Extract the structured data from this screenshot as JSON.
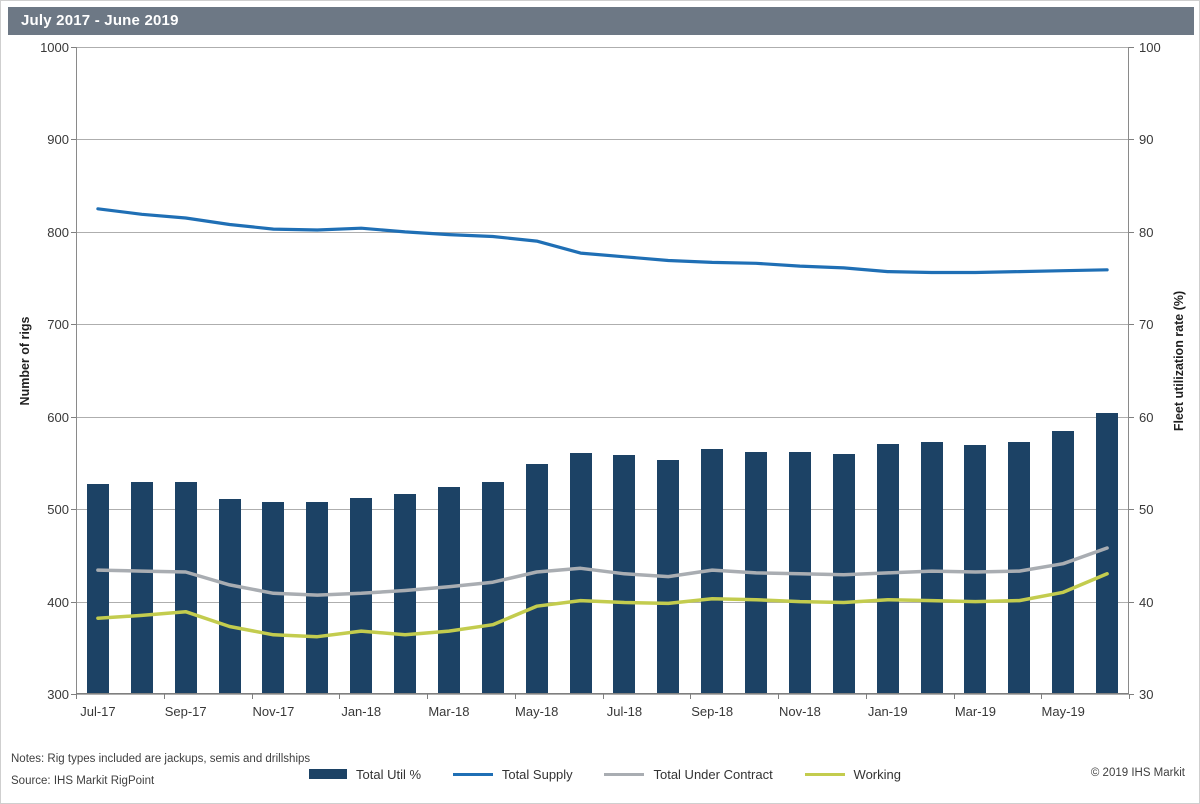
{
  "footer": {
    "notes": "Notes: Rig types included are jackups, semis and drillships",
    "source": "Source: IHS Markit RigPoint",
    "copyright": "© 2019 IHS Markit"
  },
  "colors": {
    "title_bar_bg": "#6D7885",
    "bar": "#1C4265",
    "supply_line": "#1F6FB5",
    "contract_line": "#A9ADB2",
    "working_line": "#C3CC4E",
    "gridline": "#AEAEAE"
  },
  "chart_data": {
    "type": "bar",
    "subtype": "bar-line-combo",
    "title": "July 2017 - June 2019",
    "grid": "horizontal",
    "legend_position": "bottom",
    "x_categories": [
      "Jul-17",
      "Aug-17",
      "Sep-17",
      "Oct-17",
      "Nov-17",
      "Dec-17",
      "Jan-18",
      "Feb-18",
      "Mar-18",
      "Apr-18",
      "May-18",
      "Jun-18",
      "Jul-18",
      "Aug-18",
      "Sep-18",
      "Oct-18",
      "Nov-18",
      "Dec-18",
      "Jan-19",
      "Feb-19",
      "Mar-19",
      "Apr-19",
      "May-19",
      "Jun-19"
    ],
    "x_tick_labels": [
      "Jul-17",
      "Sep-17",
      "Nov-17",
      "Jan-18",
      "Mar-18",
      "May-18",
      "Jul-18",
      "Sep-18",
      "Nov-18",
      "Jan-19",
      "Mar-19",
      "May-19"
    ],
    "left_axis": {
      "label": "Number of rigs",
      "min": 300,
      "max": 1000,
      "step": 100,
      "ticks": [
        1000,
        900,
        800,
        700,
        600,
        500,
        400,
        300
      ]
    },
    "right_axis": {
      "label": "Fleet utilization rate (%)",
      "min": 30,
      "max": 100,
      "step": 10,
      "ticks": [
        100,
        90,
        80,
        70,
        60,
        50,
        40,
        30
      ]
    },
    "series": [
      {
        "name": "Total Util %",
        "kind": "bar",
        "axis": "right",
        "color": "#1C4265",
        "values": [
          52.7,
          52.9,
          52.9,
          51.1,
          50.8,
          50.8,
          51.2,
          51.6,
          52.4,
          52.9,
          54.9,
          56.1,
          55.9,
          55.3,
          56.5,
          56.2,
          56.2,
          56.0,
          57.1,
          57.3,
          56.9,
          57.3,
          58.5,
          60.4
        ]
      },
      {
        "name": "Total Supply",
        "kind": "line",
        "axis": "left",
        "color": "#1F6FB5",
        "values": [
          825,
          819,
          815,
          808,
          803,
          802,
          804,
          800,
          797,
          795,
          790,
          777,
          773,
          769,
          767,
          766,
          763,
          761,
          757,
          756,
          756,
          757,
          758,
          759
        ]
      },
      {
        "name": "Total Under Contract",
        "kind": "line",
        "axis": "left",
        "color": "#A9ADB2",
        "values": [
          434,
          433,
          432,
          418,
          409,
          407,
          409,
          412,
          416,
          421,
          432,
          436,
          430,
          427,
          434,
          431,
          430,
          429,
          431,
          433,
          432,
          433,
          441,
          458
        ]
      },
      {
        "name": "Working",
        "kind": "line",
        "axis": "left",
        "color": "#C3CC4E",
        "values": [
          382,
          385,
          389,
          373,
          364,
          362,
          368,
          364,
          368,
          375,
          395,
          401,
          399,
          398,
          403,
          402,
          400,
          399,
          402,
          401,
          400,
          401,
          410,
          430
        ]
      }
    ]
  }
}
